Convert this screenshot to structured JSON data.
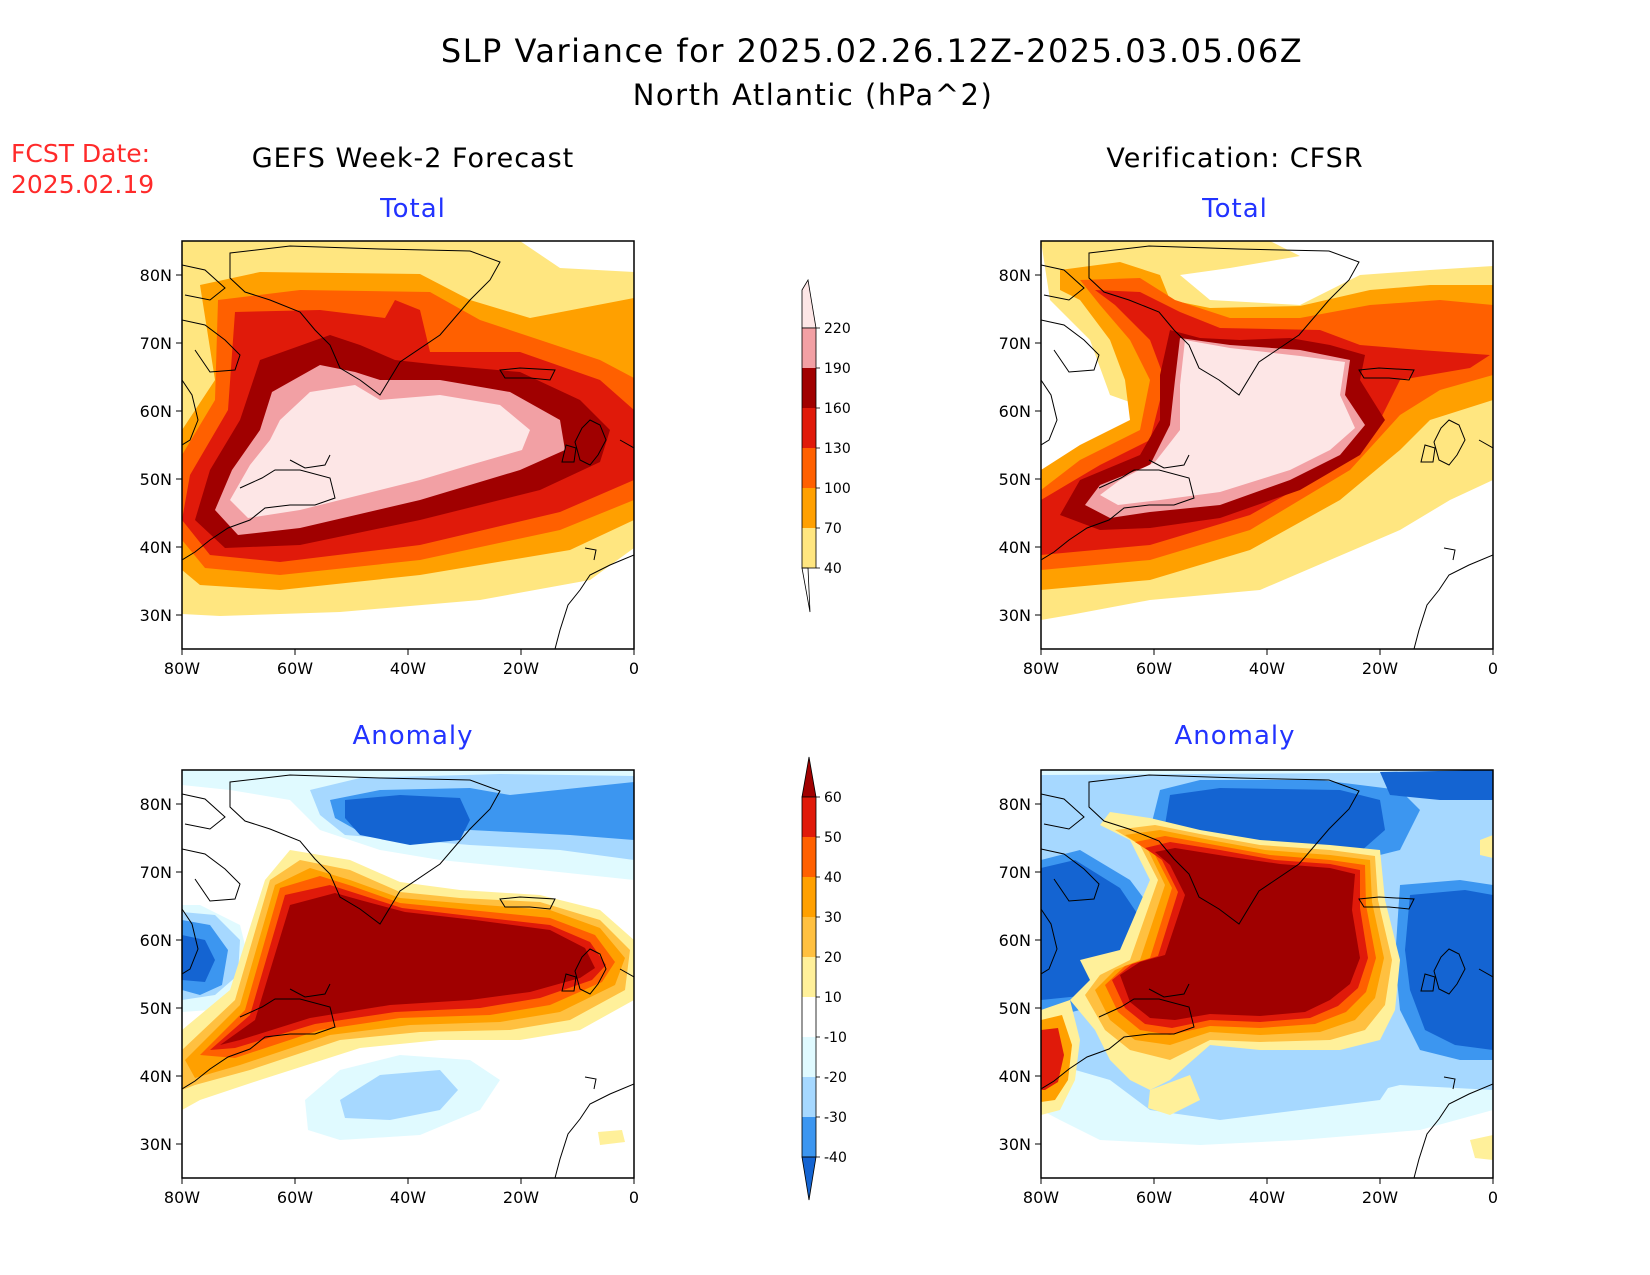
{
  "title": {
    "line1": "SLP Variance for 2025.02.26.12Z-2025.03.05.06Z",
    "line2": "North Atlantic (hPa^2)"
  },
  "fcst": {
    "label": "FCST Date:",
    "date": "2025.02.19",
    "color": "#ff2a2a"
  },
  "columns": {
    "left": "GEFS Week-2 Forecast",
    "right": "Verification: CFSR"
  },
  "rows": {
    "top": "Total",
    "bottom": "Anomaly",
    "color": "#2233ff"
  },
  "axes": {
    "lon_ticks": [
      "80W",
      "60W",
      "40W",
      "20W",
      "0"
    ],
    "lat_ticks": [
      "80N",
      "70N",
      "60N",
      "50N",
      "40N",
      "30N"
    ],
    "lon_range": [
      -80,
      0
    ],
    "lat_range": [
      25,
      85
    ]
  },
  "colorbars": {
    "total": {
      "labels": [
        "220",
        "190",
        "160",
        "130",
        "100",
        "70",
        "40"
      ],
      "colors": [
        "#fde6e6",
        "#f2a0a4",
        "#a00000",
        "#e01a0a",
        "#ff6000",
        "#ffa000",
        "#ffe680"
      ]
    },
    "anomaly": {
      "labels": [
        "60",
        "50",
        "40",
        "30",
        "20",
        "10",
        "-10",
        "-20",
        "-30",
        "-40"
      ],
      "colors": [
        "#a00000",
        "#e01a0a",
        "#ff6000",
        "#ffa000",
        "#ffc040",
        "#fff09a",
        "#ffffff",
        "#e0faff",
        "#a6d8ff",
        "#3c96f0",
        "#1464d2"
      ]
    }
  }
}
